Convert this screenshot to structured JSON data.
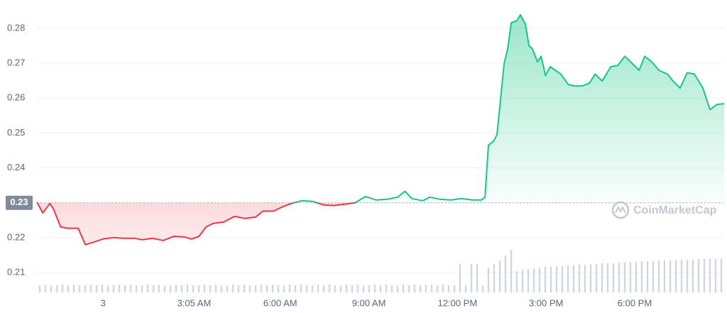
{
  "chart_data": [
    {
      "type": "line",
      "x": [
        -2.24,
        -2.04,
        -1.8,
        -1.68,
        -1.44,
        -1.2,
        -0.84,
        -0.6,
        -0.36,
        0,
        0.36,
        0.72,
        1.08,
        1.32,
        1.68,
        2.04,
        2.4,
        2.76,
        3.0,
        3.25,
        3.49,
        3.73,
        4.09,
        4.45,
        4.81,
        5.17,
        5.41,
        5.77,
        6.01,
        6.37,
        6.73,
        7.09,
        7.45,
        7.81,
        8.17,
        8.53,
        8.89,
        9.25,
        9.62,
        9.98,
        10.22,
        10.46,
        10.82,
        11.06,
        11.42,
        11.78,
        12.14,
        12.5,
        12.81,
        12.93,
        13.05,
        13.22,
        13.34,
        13.46,
        13.58,
        13.7,
        13.82,
        14.01,
        14.13,
        14.3,
        14.42,
        14.54,
        14.71,
        14.83,
        14.98,
        15.14,
        15.31,
        15.5,
        15.75,
        15.99,
        16.23,
        16.47,
        16.66,
        16.9,
        17.19,
        17.43,
        17.67,
        17.91,
        18.15,
        18.34,
        18.58,
        18.82,
        19.11,
        19.3,
        19.54,
        19.78,
        20.02,
        20.31,
        20.55,
        20.79,
        21.03
      ],
      "values": [
        0.2302,
        0.2271,
        0.2298,
        0.2282,
        0.2231,
        0.2227,
        0.2227,
        0.218,
        0.2186,
        0.2196,
        0.22,
        0.2198,
        0.2198,
        0.2194,
        0.2198,
        0.2192,
        0.2204,
        0.2202,
        0.2196,
        0.2204,
        0.2231,
        0.2241,
        0.2245,
        0.2261,
        0.2255,
        0.2259,
        0.2276,
        0.2276,
        0.2286,
        0.2298,
        0.2306,
        0.2304,
        0.2294,
        0.2292,
        0.2296,
        0.23,
        0.2318,
        0.2308,
        0.231,
        0.2316,
        0.2333,
        0.2312,
        0.2306,
        0.2316,
        0.231,
        0.2308,
        0.2312,
        0.2308,
        0.2308,
        0.2316,
        0.2465,
        0.2476,
        0.2496,
        0.2598,
        0.27,
        0.2741,
        0.2816,
        0.2822,
        0.2839,
        0.2812,
        0.2751,
        0.2741,
        0.2704,
        0.272,
        0.2665,
        0.269,
        0.268,
        0.2669,
        0.2639,
        0.2635,
        0.2635,
        0.2643,
        0.2669,
        0.2649,
        0.269,
        0.2694,
        0.272,
        0.27,
        0.268,
        0.272,
        0.2704,
        0.268,
        0.2669,
        0.2649,
        0.2629,
        0.2673,
        0.2669,
        0.2629,
        0.2567,
        0.2582,
        0.2584
      ],
      "color_up": "#16c784",
      "color_down": "#ea3943",
      "baseline": 0.23,
      "xlim": [
        -2.24,
        21.03
      ],
      "xticks": [
        {
          "value": 0,
          "label": "3"
        },
        {
          "value": 3.0833,
          "label": "3:05 AM"
        },
        {
          "value": 6,
          "label": "6:00 AM"
        },
        {
          "value": 9,
          "label": "9:00 AM"
        },
        {
          "value": 12,
          "label": "12:00 PM"
        },
        {
          "value": 15,
          "label": "3:00 PM"
        },
        {
          "value": 18,
          "label": "6:00 PM"
        }
      ],
      "ylim": [
        0.2043,
        0.2861
      ],
      "yticks": [
        0.21,
        0.22,
        0.23,
        0.24,
        0.25,
        0.26,
        0.27,
        0.28
      ],
      "grid": true,
      "watermark": "CoinMarketCap"
    },
    {
      "type": "bar",
      "color": "#cfd6e4",
      "values": [
        10,
        11,
        10,
        10,
        11,
        10,
        11,
        10,
        10,
        11,
        10,
        11,
        10,
        10,
        11,
        10,
        11,
        10,
        10,
        11,
        10,
        11,
        10,
        10,
        11,
        10,
        11,
        10,
        10,
        11,
        10,
        11,
        10,
        10,
        11,
        10,
        11,
        10,
        10,
        11,
        10,
        11,
        10,
        10,
        11,
        10,
        11,
        10,
        10,
        11,
        10,
        11,
        10,
        10,
        11,
        10,
        11,
        10,
        10,
        11,
        10,
        11,
        10,
        10,
        11,
        10,
        11,
        10,
        10,
        11,
        10,
        11,
        10,
        10,
        40,
        10,
        40,
        40,
        10,
        35,
        40,
        45,
        52,
        60,
        30,
        32,
        33,
        34,
        35,
        36,
        36,
        37,
        37,
        38,
        38,
        39,
        39,
        40,
        40,
        41,
        41,
        41,
        42,
        42,
        43,
        43,
        44,
        44,
        44,
        45,
        45,
        45,
        46,
        46,
        46,
        46,
        47,
        47,
        47,
        47,
        47
      ]
    }
  ]
}
